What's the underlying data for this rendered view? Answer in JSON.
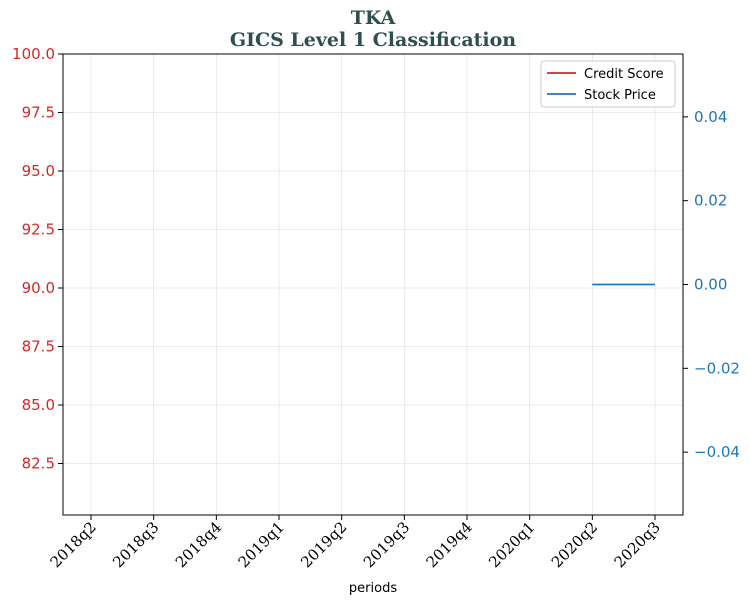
{
  "chart_data": {
    "type": "line",
    "title": "TKA",
    "subtitle": "GICS Level 1 Classification",
    "xlabel": "periods",
    "categories": [
      "2018q2",
      "2018q3",
      "2018q4",
      "2019q1",
      "2019q2",
      "2019q3",
      "2019q4",
      "2020q1",
      "2020q2",
      "2020q3"
    ],
    "y_left": {
      "ylim": [
        80.3,
        100.0
      ],
      "ticks": [
        82.5,
        85.0,
        87.5,
        90.0,
        92.5,
        95.0,
        97.5,
        100.0
      ],
      "tick_labels": [
        "82.5",
        "85.0",
        "87.5",
        "90.0",
        "92.5",
        "95.0",
        "97.5",
        "100.0"
      ],
      "color": "#d62728"
    },
    "y_right": {
      "ylim": [
        -0.055,
        0.055
      ],
      "ticks": [
        -0.04,
        -0.02,
        0.0,
        0.02,
        0.04
      ],
      "tick_labels": [
        "−0.04",
        "−0.02",
        "0.00",
        "0.02",
        "0.04"
      ],
      "color": "#1f77b4"
    },
    "series": [
      {
        "name": "Credit Score",
        "axis": "left",
        "color": "#d62728",
        "values": [
          null,
          null,
          null,
          null,
          null,
          null,
          null,
          null,
          null,
          null
        ]
      },
      {
        "name": "Stock Price",
        "axis": "right",
        "color": "#1f77b4",
        "values": [
          null,
          null,
          null,
          null,
          null,
          null,
          null,
          null,
          0.0,
          0.0
        ]
      }
    ],
    "grid": true,
    "legend_position": "top-right"
  }
}
